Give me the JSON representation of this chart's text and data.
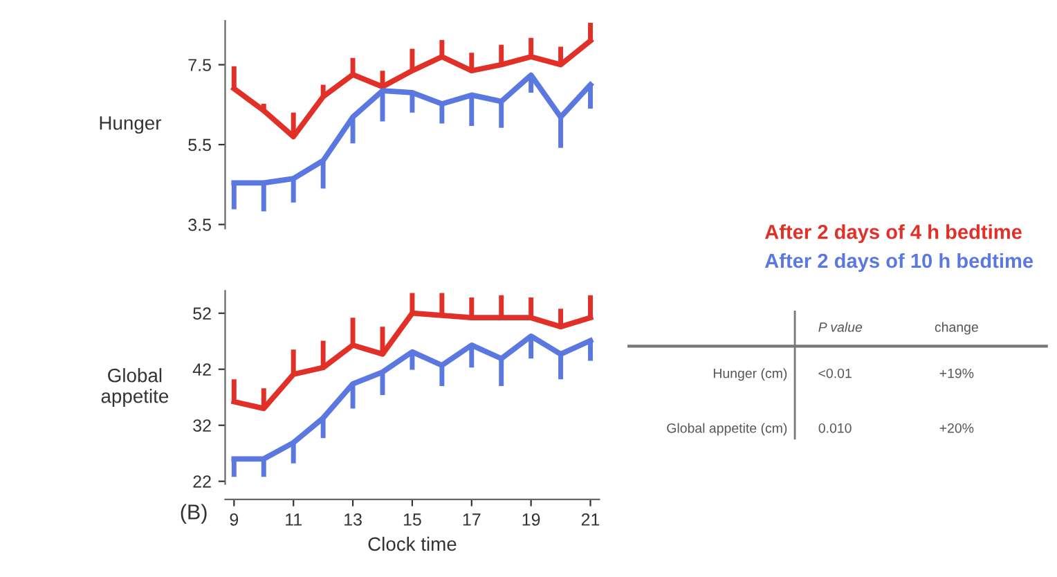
{
  "chart_data": [
    {
      "type": "line",
      "ylabel": "Hunger",
      "x": [
        9,
        10,
        11,
        12,
        13,
        14,
        15,
        16,
        17,
        18,
        19,
        20,
        21
      ],
      "ylim": [
        3.4,
        8.6
      ],
      "yticks": [
        3.5,
        5.5,
        7.5
      ],
      "tick_labels": "y",
      "grid": false,
      "legend": "right",
      "marker": "none",
      "line_style": "solid",
      "series": [
        {
          "name": "After 2 days of 4 h bedtime",
          "color": "#e03028",
          "values": [
            6.9,
            6.35,
            5.7,
            6.7,
            7.25,
            6.95,
            7.35,
            7.7,
            7.35,
            7.5,
            7.7,
            7.5,
            8.1
          ],
          "errors": [
            [
              6.9,
              7.46
            ],
            [
              6.35,
              6.52
            ],
            [
              5.7,
              6.3
            ],
            [
              6.7,
              7.0
            ],
            [
              7.25,
              7.67
            ],
            [
              6.95,
              7.35
            ],
            [
              7.35,
              7.9
            ],
            [
              7.7,
              8.12
            ],
            [
              7.35,
              7.8
            ],
            [
              7.5,
              8.0
            ],
            [
              7.7,
              8.17
            ],
            [
              7.5,
              7.95
            ],
            [
              8.1,
              8.55
            ]
          ]
        },
        {
          "name": "After 2 days of 10 h bedtime",
          "color": "#5a78e0",
          "values": [
            4.54,
            4.54,
            4.65,
            5.1,
            6.19,
            6.85,
            6.8,
            6.52,
            6.74,
            6.58,
            7.24,
            6.19,
            7.0
          ],
          "errors": [
            [
              3.88,
              4.54
            ],
            [
              3.83,
              4.54
            ],
            [
              4.05,
              4.65
            ],
            [
              4.4,
              5.1
            ],
            [
              5.53,
              6.19
            ],
            [
              6.08,
              6.85
            ],
            [
              6.3,
              6.8
            ],
            [
              6.03,
              6.52
            ],
            [
              5.97,
              6.74
            ],
            [
              5.92,
              6.58
            ],
            [
              6.8,
              7.24
            ],
            [
              5.42,
              6.19
            ],
            [
              6.4,
              7.0
            ]
          ]
        }
      ]
    },
    {
      "type": "line",
      "ylabel": "Global appetite",
      "xlabel": "Clock time",
      "x": [
        9,
        10,
        11,
        12,
        13,
        14,
        15,
        16,
        17,
        18,
        19,
        20,
        21
      ],
      "xlim": [
        8.7,
        21.3
      ],
      "xticks": [
        9,
        11,
        13,
        15,
        17,
        19,
        21
      ],
      "ylim": [
        21.5,
        56
      ],
      "yticks": [
        22,
        32,
        42,
        52
      ],
      "grid": false,
      "marker": "none",
      "line_style": "solid",
      "series": [
        {
          "color": "#e03028",
          "values": [
            36.2,
            35.0,
            41.1,
            42.3,
            46.3,
            44.7,
            52,
            51.6,
            51.2,
            51.2,
            51.2,
            49.6,
            51.2
          ],
          "errors": [
            [
              36.2,
              40.2
            ],
            [
              35.0,
              38.6
            ],
            [
              41.1,
              45.5
            ],
            [
              42.3,
              47.1
            ],
            [
              46.3,
              51.2
            ],
            [
              44.7,
              49.6
            ],
            [
              52,
              55.6
            ],
            [
              51.6,
              55.6
            ],
            [
              51.2,
              54.8
            ],
            [
              51.2,
              55.2
            ],
            [
              51.2,
              54.8
            ],
            [
              49.6,
              52.8
            ],
            [
              51.2,
              55.2
            ]
          ]
        },
        {
          "color": "#5a78e0",
          "values": [
            26.0,
            26.0,
            28.9,
            33.3,
            39.4,
            41.5,
            45.1,
            42.7,
            46.3,
            43.9,
            47.9,
            44.7,
            47.1
          ],
          "errors": [
            [
              22.8,
              26.0
            ],
            [
              22.8,
              26.0
            ],
            [
              25.2,
              28.9
            ],
            [
              29.7,
              33.3
            ],
            [
              35.0,
              39.4
            ],
            [
              37.4,
              41.5
            ],
            [
              41.9,
              45.1
            ],
            [
              39.0,
              42.7
            ],
            [
              42.3,
              46.3
            ],
            [
              39.0,
              43.9
            ],
            [
              43.9,
              47.9
            ],
            [
              40.2,
              44.7
            ],
            [
              43.5,
              47.1
            ]
          ]
        }
      ],
      "annotations": [
        "(B)",
        "P value",
        "change",
        "Hunger (cm)",
        "<0.01",
        "+19%",
        "Global appetite (cm)",
        "0.010",
        "+20%"
      ]
    }
  ]
}
